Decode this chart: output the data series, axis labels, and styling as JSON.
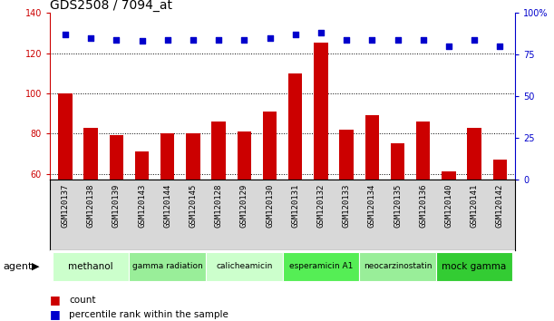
{
  "title": "GDS2508 / 7094_at",
  "samples": [
    "GSM120137",
    "GSM120138",
    "GSM120139",
    "GSM120143",
    "GSM120144",
    "GSM120145",
    "GSM120128",
    "GSM120129",
    "GSM120130",
    "GSM120131",
    "GSM120132",
    "GSM120133",
    "GSM120134",
    "GSM120135",
    "GSM120136",
    "GSM120140",
    "GSM120141",
    "GSM120142"
  ],
  "counts": [
    100,
    83,
    79,
    71,
    80,
    80,
    86,
    81,
    91,
    110,
    125,
    82,
    89,
    75,
    86,
    61,
    83,
    67
  ],
  "percentile_pct": [
    87,
    85,
    84,
    83,
    84,
    84,
    84,
    84,
    85,
    87,
    88,
    84,
    84,
    84,
    84,
    80,
    84,
    80
  ],
  "ylim_left": [
    57,
    140
  ],
  "ylim_right": [
    0,
    100
  ],
  "yticks_left": [
    60,
    80,
    100,
    120,
    140
  ],
  "yticks_right": [
    0,
    25,
    50,
    75,
    100
  ],
  "bar_color": "#cc0000",
  "dot_color": "#0000cc",
  "agents": [
    {
      "label": "methanol",
      "start": 0,
      "end": 3,
      "color": "#ccffcc"
    },
    {
      "label": "gamma radiation",
      "start": 3,
      "end": 6,
      "color": "#99ee99"
    },
    {
      "label": "calicheamicin",
      "start": 6,
      "end": 9,
      "color": "#ccffcc"
    },
    {
      "label": "esperamicin A1",
      "start": 9,
      "end": 12,
      "color": "#55ee55"
    },
    {
      "label": "neocarzinostatin",
      "start": 12,
      "end": 15,
      "color": "#99ee99"
    },
    {
      "label": "mock gamma",
      "start": 15,
      "end": 18,
      "color": "#33cc33"
    }
  ],
  "legend_count_label": "count",
  "legend_pct_label": "percentile rank within the sample",
  "agent_label": "agent",
  "left_axis_color": "#cc0000",
  "right_axis_color": "#0000cc",
  "title_fontsize": 10,
  "tick_fontsize": 7,
  "bar_width": 0.55,
  "xlim": [
    -0.6,
    17.6
  ]
}
